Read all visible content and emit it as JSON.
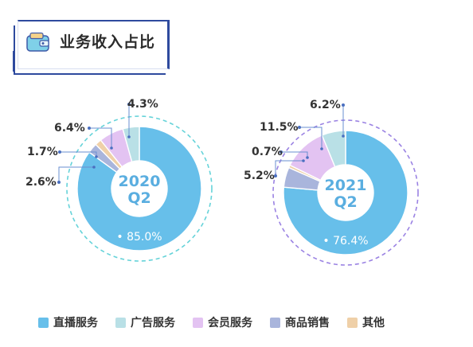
{
  "header": {
    "title": "业务收入占比",
    "icon": "wallet-icon"
  },
  "colors": {
    "直播服务": "#67bfea",
    "广告服务": "#b9e0e6",
    "会员服务": "#e3c3f2",
    "商品销售": "#a9b5dc",
    "其他": "#efd0a8",
    "ring_2020": "#66d3d9",
    "ring_2021": "#9b83e3"
  },
  "chart_data": [
    {
      "type": "pie",
      "center_label": [
        "2020",
        "Q2"
      ],
      "categories": [
        "直播服务",
        "广告服务",
        "会员服务",
        "商品销售",
        "其他"
      ],
      "values": [
        85.0,
        4.3,
        6.4,
        2.6,
        1.7
      ],
      "value_labels": [
        "85.0%",
        "4.3%",
        "6.4%",
        "2.6%",
        "1.7%"
      ]
    },
    {
      "type": "pie",
      "center_label": [
        "2021",
        "Q2"
      ],
      "categories": [
        "直播服务",
        "广告服务",
        "会员服务",
        "商品销售",
        "其他"
      ],
      "values": [
        76.4,
        6.2,
        11.5,
        5.2,
        0.7
      ],
      "value_labels": [
        "76.4%",
        "6.2%",
        "11.5%",
        "5.2%",
        "0.7%"
      ]
    }
  ],
  "legend": [
    {
      "label": "直播服务",
      "color": "#67bfea"
    },
    {
      "label": "广告服务",
      "color": "#b9e0e6"
    },
    {
      "label": "会员服务",
      "color": "#e3c3f2"
    },
    {
      "label": "商品销售",
      "color": "#a9b5dc"
    },
    {
      "label": "其他",
      "color": "#efd0a8"
    }
  ]
}
